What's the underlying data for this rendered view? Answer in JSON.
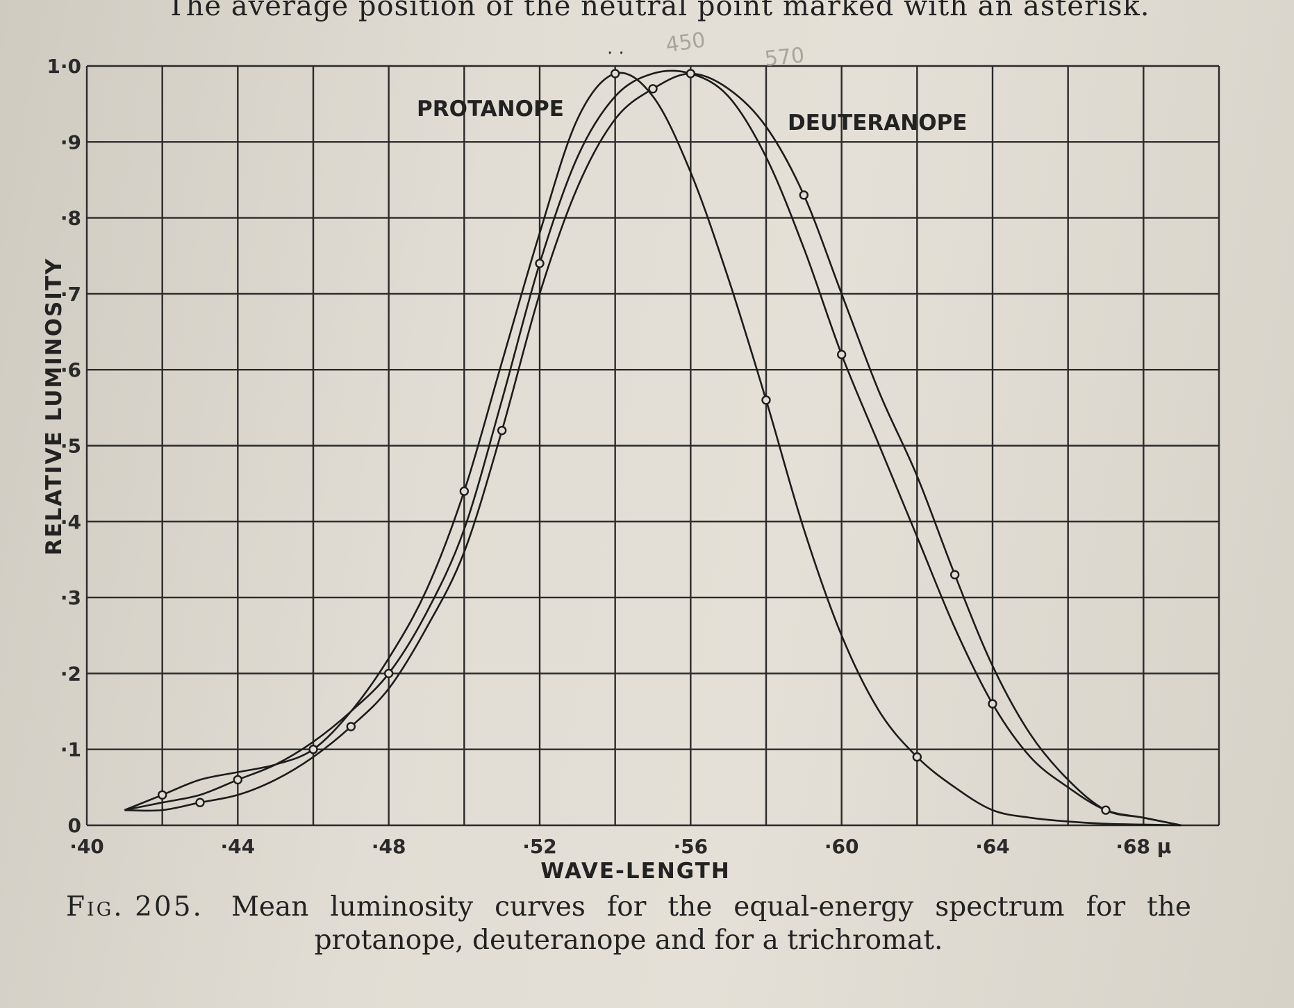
{
  "header": {
    "text": "The average position of the neutral point marked with an asterisk."
  },
  "chart_data": {
    "type": "line",
    "title": "",
    "xlabel": "WAVE-LENGTH",
    "ylabel": "RELATIVE LUMINOSITY",
    "xlim": [
      0.4,
      0.7
    ],
    "ylim": [
      0,
      1.0
    ],
    "x_ticks": [
      0.4,
      0.44,
      0.48,
      0.52,
      0.56,
      0.6,
      0.64,
      0.68
    ],
    "x_tick_labels": [
      "·40",
      "·44",
      "·48",
      "·52",
      "·56",
      "·60",
      "·64",
      "·68 μ"
    ],
    "y_ticks": [
      0,
      0.1,
      0.2,
      0.3,
      0.4,
      0.5,
      0.6,
      0.7,
      0.8,
      0.9,
      1.0
    ],
    "y_tick_labels": [
      "0",
      "·1",
      "·2",
      "·3",
      "·4",
      "·5",
      "·6",
      "·7",
      "·8",
      "·9",
      "1·0"
    ],
    "grid": true,
    "annotations": [
      "PROTANOPE",
      "DEUTERANOPE"
    ],
    "handwritten_notes": [
      "450",
      "570"
    ],
    "series": [
      {
        "name": "PROTANOPE",
        "x": [
          0.41,
          0.42,
          0.43,
          0.44,
          0.45,
          0.46,
          0.47,
          0.48,
          0.49,
          0.5,
          0.51,
          0.52,
          0.53,
          0.54,
          0.55,
          0.56,
          0.57,
          0.58,
          0.59,
          0.6,
          0.61,
          0.62,
          0.63,
          0.64,
          0.65,
          0.66,
          0.67,
          0.68,
          0.69
        ],
        "y": [
          0.02,
          0.04,
          0.06,
          0.07,
          0.08,
          0.1,
          0.15,
          0.22,
          0.31,
          0.44,
          0.61,
          0.78,
          0.93,
          0.99,
          0.96,
          0.86,
          0.72,
          0.56,
          0.39,
          0.25,
          0.15,
          0.09,
          0.05,
          0.02,
          0.01,
          0.005,
          0.002,
          0.001,
          0.0
        ]
      },
      {
        "name": "DEUTERANOPE",
        "x": [
          0.41,
          0.42,
          0.43,
          0.44,
          0.45,
          0.46,
          0.47,
          0.48,
          0.49,
          0.5,
          0.51,
          0.52,
          0.53,
          0.54,
          0.55,
          0.56,
          0.57,
          0.58,
          0.59,
          0.6,
          0.61,
          0.62,
          0.63,
          0.64,
          0.65,
          0.66,
          0.67,
          0.68,
          0.69
        ],
        "y": [
          0.02,
          0.02,
          0.03,
          0.04,
          0.06,
          0.09,
          0.13,
          0.18,
          0.26,
          0.36,
          0.52,
          0.7,
          0.84,
          0.93,
          0.97,
          0.99,
          0.97,
          0.92,
          0.83,
          0.7,
          0.57,
          0.46,
          0.33,
          0.21,
          0.12,
          0.06,
          0.02,
          0.01,
          0.0
        ]
      },
      {
        "name": "",
        "x": [
          0.41,
          0.42,
          0.43,
          0.44,
          0.45,
          0.46,
          0.47,
          0.48,
          0.49,
          0.5,
          0.51,
          0.52,
          0.53,
          0.54,
          0.55,
          0.56,
          0.57,
          0.58,
          0.59,
          0.6,
          0.61,
          0.62,
          0.63,
          0.64,
          0.65,
          0.66,
          0.67,
          0.68,
          0.69
        ],
        "y": [
          0.02,
          0.03,
          0.04,
          0.06,
          0.08,
          0.11,
          0.15,
          0.2,
          0.28,
          0.39,
          0.56,
          0.74,
          0.88,
          0.96,
          0.99,
          0.99,
          0.96,
          0.88,
          0.76,
          0.62,
          0.5,
          0.38,
          0.26,
          0.16,
          0.09,
          0.05,
          0.02,
          0.01,
          0.0
        ]
      }
    ]
  },
  "caption": {
    "fig_label": "Fig. 205.",
    "line1": "Mean luminosity curves for the equal-energy spectrum for the",
    "line2": "protanope, deuteranope and for a trichromat."
  },
  "colors": {
    "paper": "#e1ddd4",
    "ink": "#1c1c1c",
    "grid": "#2b2b2b",
    "pencil": "#a9a59d"
  }
}
